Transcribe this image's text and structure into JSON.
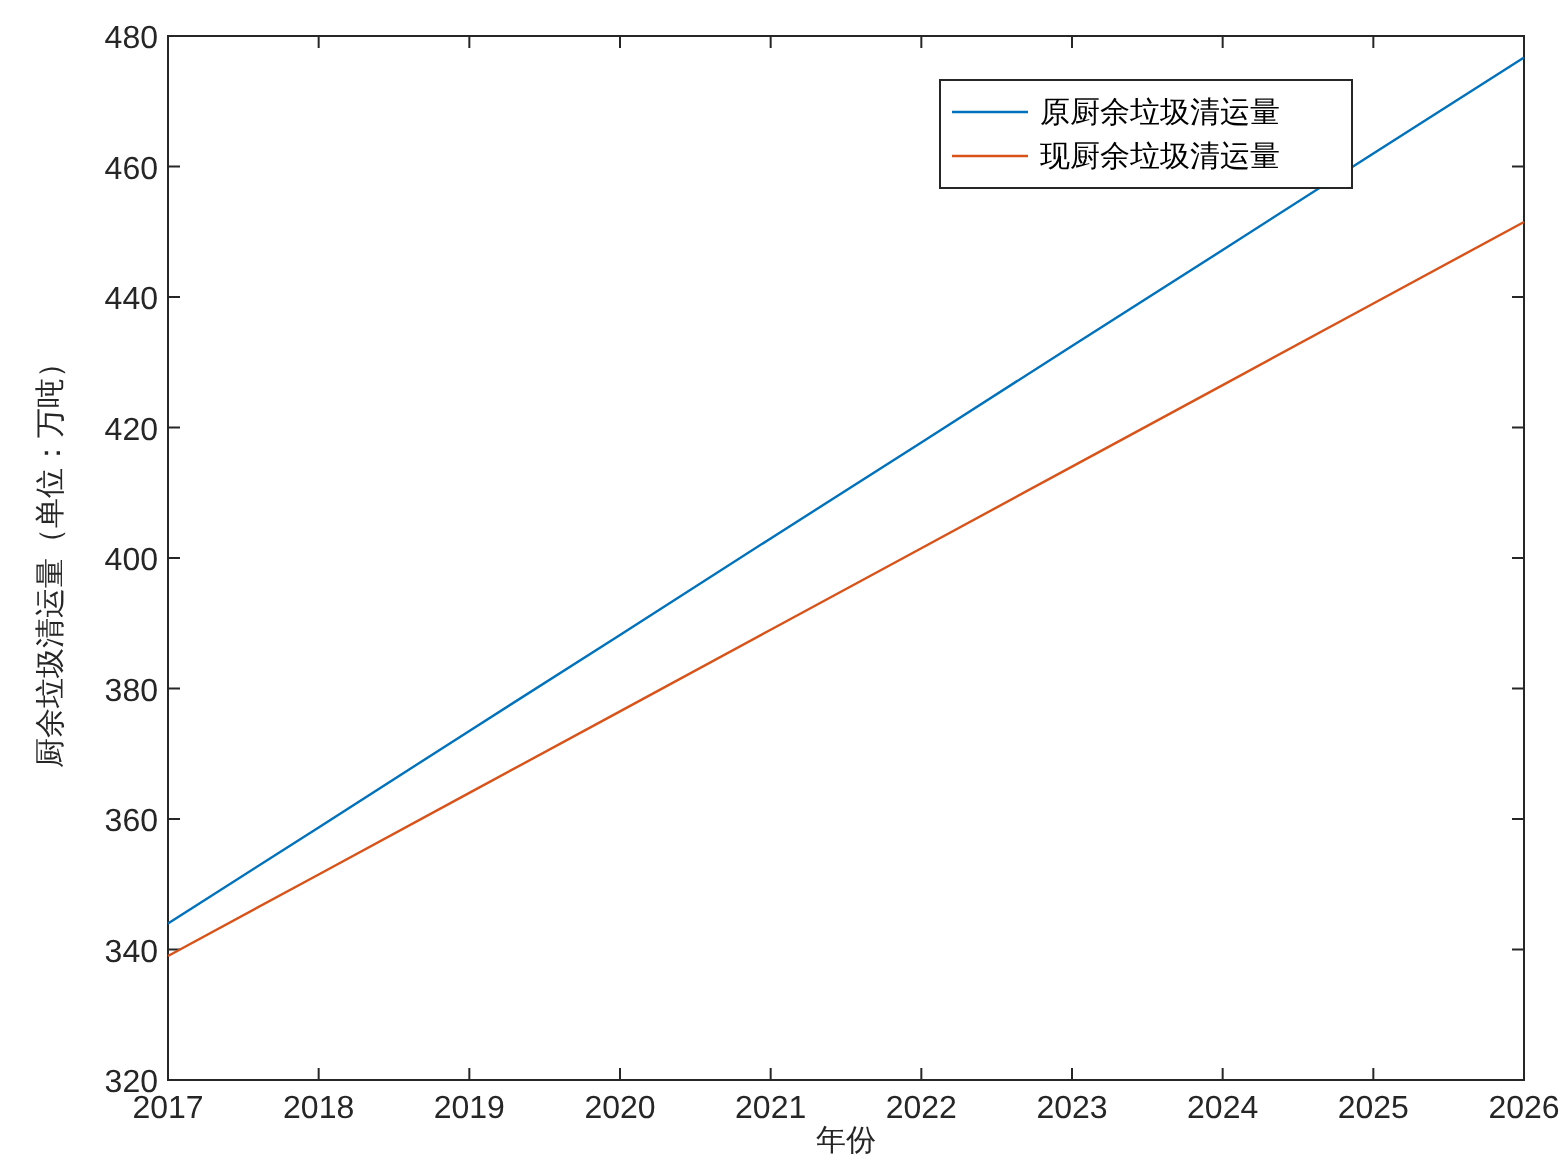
{
  "chart_data": {
    "type": "line",
    "xlabel": "年份",
    "ylabel": "厨余垃圾清运量（单位：万吨）",
    "x": [
      2017,
      2018,
      2019,
      2020,
      2021,
      2022,
      2023,
      2024,
      2025,
      2026
    ],
    "xlim": [
      2017,
      2026
    ],
    "xticks": [
      2017,
      2018,
      2019,
      2020,
      2021,
      2022,
      2023,
      2024,
      2025,
      2026
    ],
    "ylim": [
      320,
      480
    ],
    "yticks": [
      320,
      340,
      360,
      380,
      400,
      420,
      440,
      460,
      480
    ],
    "legend": "top right",
    "series": [
      {
        "name": "原厨余垃圾清运量",
        "color": "#0072bd",
        "values": [
          344,
          358.7,
          373.5,
          388.2,
          403,
          417.7,
          432.5,
          447.2,
          462,
          476.7
        ]
      },
      {
        "name": "现厨余垃圾清运量",
        "color": "#d95319",
        "values": [
          339,
          351.5,
          364,
          376.5,
          389,
          401.5,
          414,
          426.5,
          439,
          451.5
        ]
      }
    ]
  }
}
